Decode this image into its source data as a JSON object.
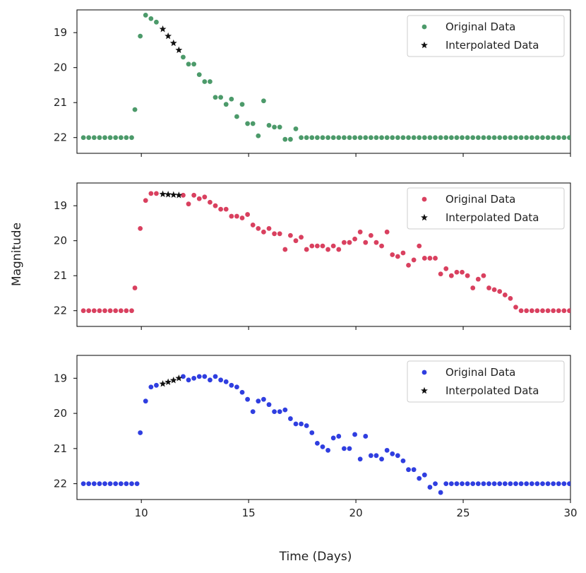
{
  "figure": {
    "xlabel": "Time (Days)",
    "ylabel": "Magnitude"
  },
  "chart_data": [
    {
      "type": "scatter",
      "panel": "top",
      "xlim": [
        7,
        30
      ],
      "ylim": [
        22.45,
        18.35
      ],
      "xticks": [
        10,
        15,
        20,
        25,
        30
      ],
      "yticks": [
        19,
        20,
        21,
        22
      ],
      "xlabel": "",
      "ylabel": "",
      "legend": "top-right",
      "series": [
        {
          "name": "Original Data",
          "color": "#4c9a6a",
          "marker": "circle",
          "x": [
            7.3,
            7.55,
            7.8,
            8.05,
            8.3,
            8.55,
            8.8,
            9.05,
            9.3,
            9.55,
            9.7,
            9.95,
            10.2,
            10.45,
            10.7,
            11.95,
            12.2,
            12.45,
            12.7,
            12.95,
            13.2,
            13.45,
            13.7,
            13.95,
            14.2,
            14.45,
            14.7,
            14.95,
            15.2,
            15.45,
            15.7,
            15.95,
            16.2,
            16.45,
            16.7,
            16.95,
            17.2,
            17.45,
            17.7,
            17.95,
            18.2,
            18.45,
            18.7,
            18.95,
            19.2,
            19.45,
            19.7,
            19.95,
            20.2,
            20.45,
            20.7,
            20.95,
            21.2,
            21.45,
            21.7,
            21.95,
            22.2,
            22.45,
            22.7,
            22.95,
            23.2,
            23.45,
            23.7,
            23.95,
            24.2,
            24.45,
            24.7,
            24.95,
            25.2,
            25.45,
            25.7,
            25.95,
            26.2,
            26.45,
            26.7,
            26.95,
            27.2,
            27.45,
            27.7,
            27.95,
            28.2,
            28.45,
            28.7,
            28.95,
            29.2,
            29.45,
            29.7,
            29.95
          ],
          "y": [
            22,
            22,
            22,
            22,
            22,
            22,
            22,
            22,
            22,
            22,
            21.2,
            19.1,
            18.5,
            18.6,
            18.7,
            19.7,
            19.9,
            19.9,
            20.2,
            20.4,
            20.4,
            20.85,
            20.85,
            21.05,
            20.9,
            21.4,
            21.05,
            21.6,
            21.6,
            21.95,
            20.95,
            21.65,
            21.7,
            21.7,
            22.05,
            22.05,
            21.75,
            22,
            22,
            22,
            22,
            22,
            22,
            22,
            22,
            22,
            22,
            22,
            22,
            22,
            22,
            22,
            22,
            22,
            22,
            22,
            22,
            22,
            22,
            22,
            22,
            22,
            22,
            22,
            22,
            22,
            22,
            22,
            22,
            22,
            22,
            22,
            22,
            22,
            22,
            22,
            22,
            22,
            22,
            22,
            22,
            22,
            22,
            22,
            22,
            22,
            22,
            22
          ]
        },
        {
          "name": "Interpolated Data",
          "color": "#111111",
          "marker": "star",
          "x": [
            11.0,
            11.25,
            11.5,
            11.75
          ],
          "y": [
            18.9,
            19.1,
            19.3,
            19.5
          ]
        }
      ]
    },
    {
      "type": "scatter",
      "panel": "middle",
      "xlim": [
        7,
        30
      ],
      "ylim": [
        22.45,
        18.35
      ],
      "xticks": [
        10,
        15,
        20,
        25,
        30
      ],
      "yticks": [
        19,
        20,
        21,
        22
      ],
      "xlabel": "",
      "ylabel": "Magnitude",
      "legend": "top-right",
      "series": [
        {
          "name": "Original Data",
          "color": "#d9405f",
          "marker": "circle",
          "x": [
            7.3,
            7.55,
            7.8,
            8.05,
            8.3,
            8.55,
            8.8,
            9.05,
            9.3,
            9.55,
            9.7,
            9.95,
            10.2,
            10.45,
            10.7,
            11.95,
            12.2,
            12.45,
            12.7,
            12.95,
            13.2,
            13.45,
            13.7,
            13.95,
            14.2,
            14.45,
            14.7,
            14.95,
            15.2,
            15.45,
            15.7,
            15.95,
            16.2,
            16.45,
            16.7,
            16.95,
            17.2,
            17.45,
            17.7,
            17.95,
            18.2,
            18.45,
            18.7,
            18.95,
            19.2,
            19.45,
            19.7,
            19.95,
            20.2,
            20.45,
            20.7,
            20.95,
            21.2,
            21.45,
            21.7,
            21.95,
            22.2,
            22.45,
            22.7,
            22.95,
            23.2,
            23.45,
            23.7,
            23.95,
            24.2,
            24.45,
            24.7,
            24.95,
            25.2,
            25.45,
            25.7,
            25.95,
            26.2,
            26.45,
            26.7,
            26.95,
            27.2,
            27.45,
            27.7,
            27.95,
            28.2,
            28.45,
            28.7,
            28.95,
            29.2,
            29.45,
            29.7,
            29.95
          ],
          "y": [
            22,
            22,
            22,
            22,
            22,
            22,
            22,
            22,
            22,
            22,
            21.35,
            19.65,
            18.85,
            18.65,
            18.65,
            18.7,
            18.95,
            18.7,
            18.8,
            18.75,
            18.9,
            19.0,
            19.1,
            19.1,
            19.3,
            19.3,
            19.35,
            19.25,
            19.55,
            19.65,
            19.75,
            19.65,
            19.8,
            19.8,
            20.25,
            19.85,
            20.0,
            19.9,
            20.25,
            20.15,
            20.15,
            20.15,
            20.25,
            20.15,
            20.25,
            20.05,
            20.05,
            19.95,
            19.75,
            20.05,
            19.85,
            20.05,
            20.15,
            19.75,
            20.4,
            20.45,
            20.35,
            20.7,
            20.55,
            20.15,
            20.5,
            20.5,
            20.5,
            20.95,
            20.8,
            21.0,
            20.9,
            20.9,
            21.0,
            21.35,
            21.1,
            21.0,
            21.35,
            21.4,
            21.45,
            21.55,
            21.65,
            21.9,
            22,
            22,
            22,
            22,
            22,
            22,
            22,
            22,
            22,
            22
          ]
        },
        {
          "name": "Interpolated Data",
          "color": "#111111",
          "marker": "star",
          "x": [
            11.0,
            11.25,
            11.5,
            11.75
          ],
          "y": [
            18.67,
            18.68,
            18.69,
            18.7
          ]
        }
      ]
    },
    {
      "type": "scatter",
      "panel": "bottom",
      "xlim": [
        7,
        30
      ],
      "ylim": [
        22.45,
        18.35
      ],
      "xticks": [
        10,
        15,
        20,
        25,
        30
      ],
      "xticklabels": [
        "10",
        "15",
        "20",
        "25",
        "30"
      ],
      "yticks": [
        19,
        20,
        21,
        22
      ],
      "xlabel": "Time (Days)",
      "ylabel": "",
      "legend": "top-right",
      "series": [
        {
          "name": "Original Data",
          "color": "#2f3ee0",
          "marker": "circle",
          "x": [
            7.3,
            7.55,
            7.8,
            8.05,
            8.3,
            8.55,
            8.8,
            9.05,
            9.3,
            9.55,
            9.8,
            9.95,
            10.2,
            10.45,
            10.7,
            11.95,
            12.2,
            12.45,
            12.7,
            12.95,
            13.2,
            13.45,
            13.7,
            13.95,
            14.2,
            14.45,
            14.7,
            14.95,
            15.2,
            15.45,
            15.7,
            15.95,
            16.2,
            16.45,
            16.7,
            16.95,
            17.2,
            17.45,
            17.7,
            17.95,
            18.2,
            18.45,
            18.7,
            18.95,
            19.2,
            19.45,
            19.7,
            19.95,
            20.2,
            20.45,
            20.7,
            20.95,
            21.2,
            21.45,
            21.7,
            21.95,
            22.2,
            22.45,
            22.7,
            22.95,
            23.2,
            23.45,
            23.7,
            23.95,
            24.2,
            24.45,
            24.7,
            24.95,
            25.2,
            25.45,
            25.7,
            25.95,
            26.2,
            26.45,
            26.7,
            26.95,
            27.2,
            27.45,
            27.7,
            27.95,
            28.2,
            28.45,
            28.7,
            28.95,
            29.2,
            29.45,
            29.7,
            29.95
          ],
          "y": [
            22,
            22,
            22,
            22,
            22,
            22,
            22,
            22,
            22,
            22,
            22,
            20.55,
            19.65,
            19.25,
            19.2,
            18.95,
            19.05,
            19.0,
            18.95,
            18.95,
            19.05,
            18.95,
            19.05,
            19.1,
            19.2,
            19.25,
            19.4,
            19.6,
            19.95,
            19.65,
            19.6,
            19.75,
            19.95,
            19.95,
            19.9,
            20.15,
            20.3,
            20.3,
            20.35,
            20.55,
            20.85,
            20.95,
            21.05,
            20.7,
            20.65,
            21.0,
            21.0,
            20.6,
            21.3,
            20.65,
            21.2,
            21.2,
            21.3,
            21.05,
            21.15,
            21.2,
            21.35,
            21.6,
            21.6,
            21.85,
            21.75,
            22.1,
            22.0,
            22.25,
            22,
            22,
            22,
            22,
            22,
            22,
            22,
            22,
            22,
            22,
            22,
            22,
            22,
            22,
            22,
            22,
            22,
            22,
            22,
            22,
            22,
            22,
            22,
            22
          ]
        },
        {
          "name": "Interpolated Data",
          "color": "#111111",
          "marker": "star",
          "x": [
            11.0,
            11.25,
            11.5,
            11.75
          ],
          "y": [
            19.16,
            19.11,
            19.06,
            19.0
          ]
        }
      ]
    }
  ]
}
